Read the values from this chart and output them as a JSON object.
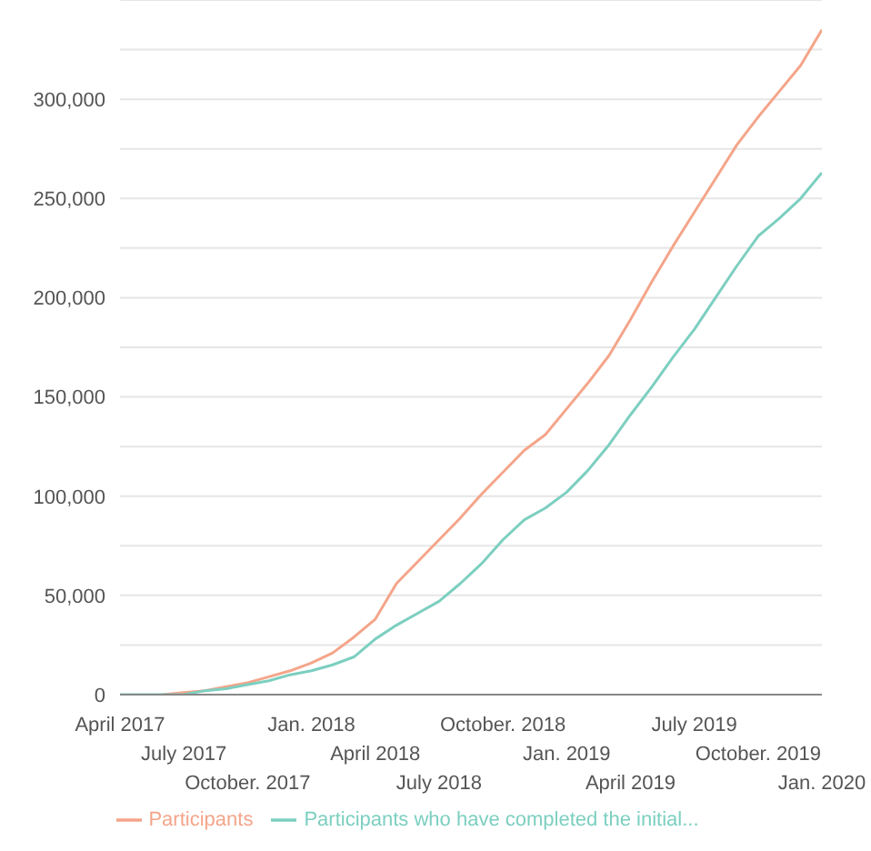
{
  "chart_data": {
    "type": "line",
    "categories": [
      "April 2017",
      null,
      null,
      "July 2017",
      null,
      null,
      "October. 2017",
      null,
      null,
      "Jan. 2018",
      null,
      null,
      "April 2018",
      null,
      null,
      "July 2018",
      null,
      null,
      "October. 2018",
      null,
      null,
      "Jan. 2019",
      null,
      null,
      "April 2019",
      null,
      null,
      "July 2019",
      null,
      null,
      "October. 2019",
      null,
      null,
      "Jan. 2020"
    ],
    "series": [
      {
        "name": "Participants",
        "color": "#f4a58a",
        "values": [
          null,
          null,
          0,
          1000,
          2000,
          4000,
          6000,
          9000,
          12000,
          16000,
          21000,
          29000,
          38000,
          56000,
          67000,
          78000,
          89000,
          101000,
          112000,
          123000,
          131000,
          144000,
          157000,
          171000,
          189000,
          208000,
          226000,
          243000,
          260000,
          277000,
          291000,
          304000,
          317000,
          335000
        ]
      },
      {
        "name": "Participants who have completed the initial...",
        "color": "#7ccfc0",
        "values": [
          0,
          0,
          0,
          0,
          2000,
          3000,
          5000,
          7000,
          10000,
          12000,
          15000,
          19000,
          28000,
          35000,
          41000,
          47000,
          56000,
          66000,
          78000,
          88000,
          94000,
          102000,
          113000,
          126000,
          141000,
          155000,
          170000,
          184000,
          200000,
          216000,
          231000,
          240000,
          250000,
          263000
        ]
      }
    ],
    "ylim": [
      0,
      350000
    ],
    "yticks": [
      0,
      {
        "value": 25000,
        "label": null
      },
      {
        "value": 50000,
        "label": "50,000"
      },
      {
        "value": 75000,
        "label": null
      },
      {
        "value": 100000,
        "label": "100,000"
      },
      {
        "value": 125000,
        "label": null
      },
      {
        "value": 150000,
        "label": "150,000"
      },
      {
        "value": 175000,
        "label": null
      },
      {
        "value": 200000,
        "label": "200,000"
      },
      {
        "value": 225000,
        "label": null
      },
      {
        "value": 250000,
        "label": "250,000"
      },
      {
        "value": 275000,
        "label": null
      },
      {
        "value": 300000,
        "label": "300,000"
      },
      {
        "value": 325000,
        "label": null
      }
    ],
    "grid": "y",
    "legend": "bottom",
    "marker": "none",
    "line_style": "solid"
  }
}
